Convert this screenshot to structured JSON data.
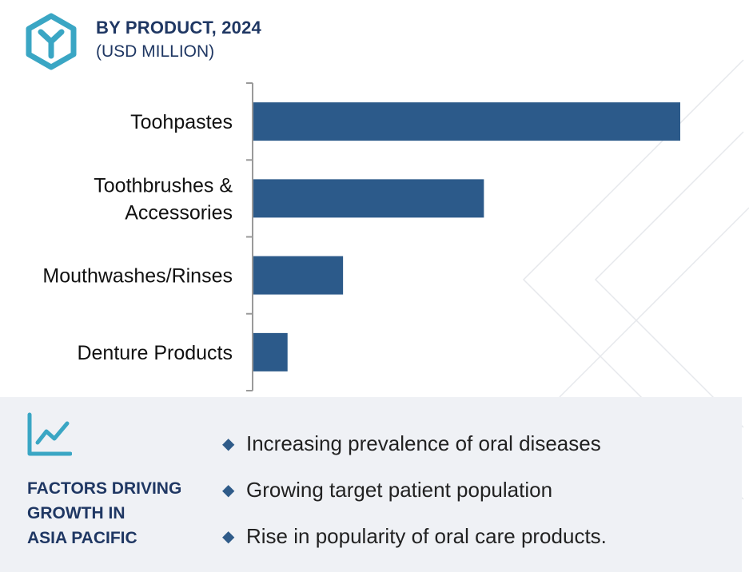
{
  "header": {
    "title": "BY PRODUCT, 2024",
    "subtitle": "(USD MILLION)"
  },
  "colors": {
    "bar": "#2c5a8a",
    "accent": "#3aa6c4",
    "heading": "#1f3763",
    "panel_bg": "#eff1f5"
  },
  "icons": {
    "logo": "hexagon-y-logo-icon",
    "growth": "line-chart-growth-icon",
    "bullet": "diamond-bullet-icon"
  },
  "chart_data": {
    "type": "bar",
    "orientation": "horizontal",
    "categories": [
      [
        "Toohpastes"
      ],
      [
        "Toothbrushes &",
        "Accessories"
      ],
      [
        "Mouthwashes/Rinses"
      ],
      [
        "Denture Products"
      ]
    ],
    "values": [
      100,
      54,
      21,
      8
    ],
    "value_axis_visible": false,
    "grid": false
  },
  "factors": {
    "title_lines": [
      "FACTORS DRIVING",
      "GROWTH IN",
      "ASIA PACIFIC"
    ],
    "items": [
      "Increasing prevalence of oral diseases",
      "Growing target patient population",
      "Rise in popularity of oral care products."
    ]
  }
}
